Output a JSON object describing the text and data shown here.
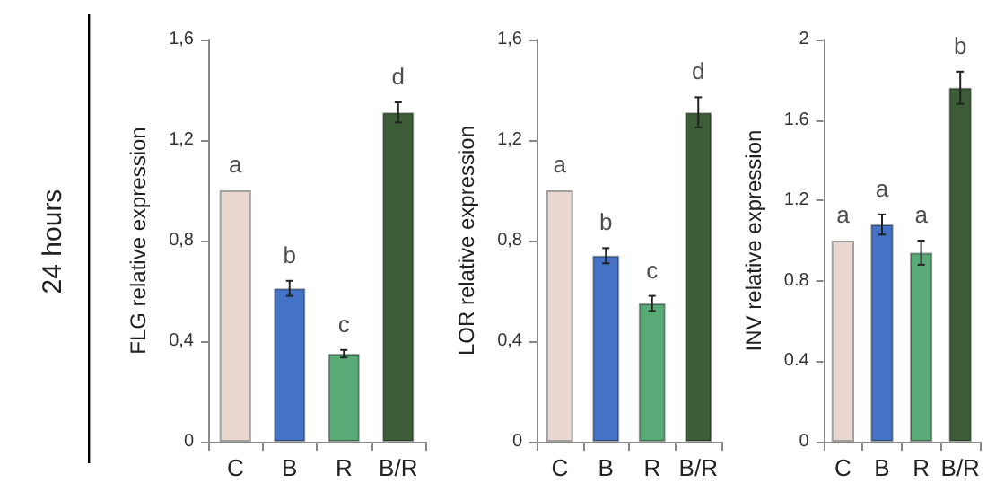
{
  "chart_data": [
    {
      "type": "bar",
      "ylabel": "FLG relative expression",
      "categories": [
        "C",
        "B",
        "R",
        "B/R"
      ],
      "values": [
        1.0,
        0.61,
        0.35,
        1.31
      ],
      "colors": [
        "#ead8d0",
        "#4472c4",
        "#5aaa78",
        "#3d5c38"
      ],
      "errors": [
        null,
        0.03,
        0.015,
        0.04
      ],
      "ylim": [
        0,
        1.6
      ],
      "yticks": [
        0,
        {
          "value": 0.4,
          "label": "0,4"
        },
        {
          "value": 0.8,
          "label": "0,8"
        },
        {
          "value": 1.2,
          "label": "1,2"
        },
        {
          "value": 1.6,
          "label": "1,6"
        }
      ],
      "annotations": [
        "24 hours",
        {
          "text": "a",
          "x": "C",
          "y": 1.0
        },
        {
          "text": "b",
          "x": "B",
          "y": 0.61
        },
        {
          "text": "c",
          "x": "R",
          "y": 0.35
        },
        {
          "text": "d",
          "x": "B/R",
          "y": 1.31
        }
      ]
    },
    {
      "type": "bar",
      "ylabel": "LOR relative expression",
      "categories": [
        "C",
        "B",
        "R",
        "B/R"
      ],
      "values": [
        1.0,
        0.74,
        0.55,
        1.31
      ],
      "colors": [
        "#ead8d0",
        "#4472c4",
        "#5aaa78",
        "#3d5c38"
      ],
      "errors": [
        null,
        0.03,
        0.03,
        0.06
      ],
      "ylim": [
        0,
        1.6
      ],
      "yticks": [
        0,
        {
          "value": 0.4,
          "label": "0,4"
        },
        {
          "value": 0.8,
          "label": "0,8"
        },
        {
          "value": 1.2,
          "label": "1,2"
        },
        {
          "value": 1.6,
          "label": "1,6"
        }
      ],
      "annotations": [
        {
          "text": "a",
          "x": "C",
          "y": 1.0
        },
        {
          "text": "b",
          "x": "B",
          "y": 0.74
        },
        {
          "text": "c",
          "x": "R",
          "y": 0.55
        },
        {
          "text": "d",
          "x": "B/R",
          "y": 1.31
        }
      ]
    },
    {
      "type": "bar",
      "ylabel": "INV relative expression",
      "categories": [
        "C",
        "B",
        "R",
        "B/R"
      ],
      "values": [
        1.0,
        1.08,
        0.94,
        1.76
      ],
      "colors": [
        "#ead8d0",
        "#4472c4",
        "#5aaa78",
        "#3d5c38"
      ],
      "errors": [
        null,
        0.05,
        0.06,
        0.08
      ],
      "ylim": [
        0,
        2
      ],
      "yticks": [
        0,
        0.4,
        0.8,
        1.2,
        1.6,
        2
      ],
      "annotations": [
        {
          "text": "a",
          "x": "C",
          "y": 1.0
        },
        {
          "text": "a",
          "x": "B",
          "y": 1.08
        },
        {
          "text": "a",
          "x": "R",
          "y": 0.94
        },
        {
          "text": "b",
          "x": "B/R",
          "y": 1.76
        }
      ]
    }
  ]
}
